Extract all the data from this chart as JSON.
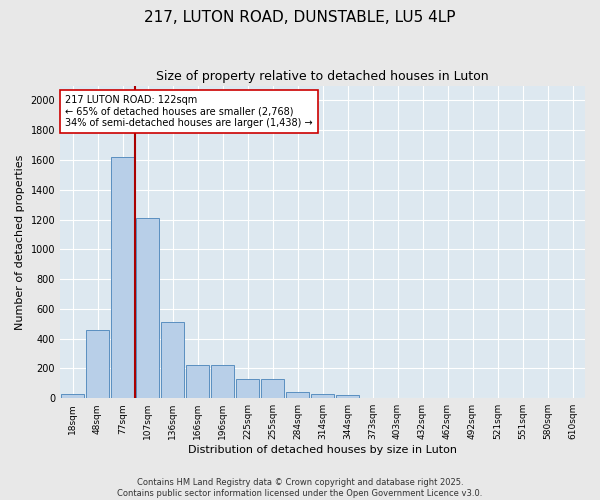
{
  "title": "217, LUTON ROAD, DUNSTABLE, LU5 4LP",
  "subtitle": "Size of property relative to detached houses in Luton",
  "xlabel": "Distribution of detached houses by size in Luton",
  "ylabel": "Number of detached properties",
  "categories": [
    "18sqm",
    "48sqm",
    "77sqm",
    "107sqm",
    "136sqm",
    "166sqm",
    "196sqm",
    "225sqm",
    "255sqm",
    "284sqm",
    "314sqm",
    "344sqm",
    "373sqm",
    "403sqm",
    "432sqm",
    "462sqm",
    "492sqm",
    "521sqm",
    "551sqm",
    "580sqm",
    "610sqm"
  ],
  "values": [
    30,
    460,
    1620,
    1210,
    510,
    220,
    220,
    130,
    130,
    40,
    25,
    20,
    0,
    0,
    0,
    0,
    0,
    0,
    0,
    0,
    0
  ],
  "bar_color": "#b8cfe8",
  "bar_edge_color": "#5a8fc0",
  "vline_x": 2.5,
  "vline_color": "#aa0000",
  "annotation_text": "217 LUTON ROAD: 122sqm\n← 65% of detached houses are smaller (2,768)\n34% of semi-detached houses are larger (1,438) →",
  "annotation_box_color": "#ffffff",
  "annotation_box_edge": "#cc0000",
  "ylim": [
    0,
    2100
  ],
  "yticks": [
    0,
    200,
    400,
    600,
    800,
    1000,
    1200,
    1400,
    1600,
    1800,
    2000
  ],
  "bg_color": "#dde8f0",
  "fig_bg_color": "#e8e8e8",
  "footer1": "Contains HM Land Registry data © Crown copyright and database right 2025.",
  "footer2": "Contains public sector information licensed under the Open Government Licence v3.0.",
  "title_fontsize": 11,
  "subtitle_fontsize": 9,
  "tick_fontsize": 6.5,
  "label_fontsize": 8,
  "annotation_fontsize": 7,
  "footer_fontsize": 6
}
